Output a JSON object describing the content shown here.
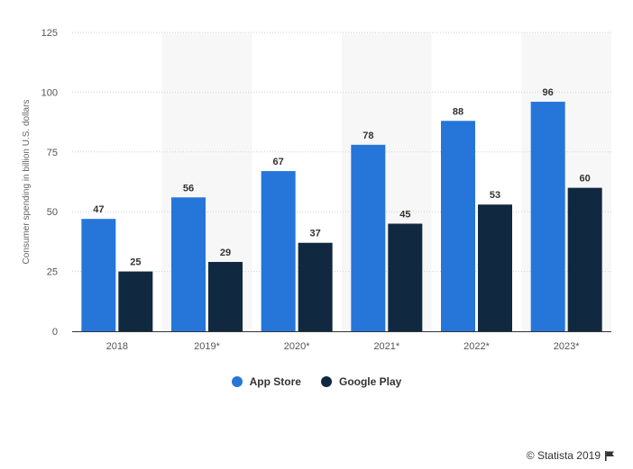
{
  "chart_data": {
    "type": "bar",
    "categories": [
      "2018",
      "2019*",
      "2020*",
      "2021*",
      "2022*",
      "2023*"
    ],
    "series": [
      {
        "name": "App Store",
        "values": [
          47,
          56,
          67,
          78,
          88,
          96
        ],
        "color": "#2676d9"
      },
      {
        "name": "Google Play",
        "values": [
          25,
          29,
          37,
          45,
          53,
          60
        ],
        "color": "#102840"
      }
    ],
    "ylabel": "Consumer spending in billion U.S. dollars",
    "xlabel": "",
    "ylim": [
      0,
      125
    ],
    "yticks": [
      0,
      25,
      50,
      75,
      100,
      125
    ],
    "grid": true,
    "legend_position": "bottom-center",
    "alternating_band_color": "#f7f7f7"
  },
  "credits": {
    "text": "© Statista 2019"
  }
}
